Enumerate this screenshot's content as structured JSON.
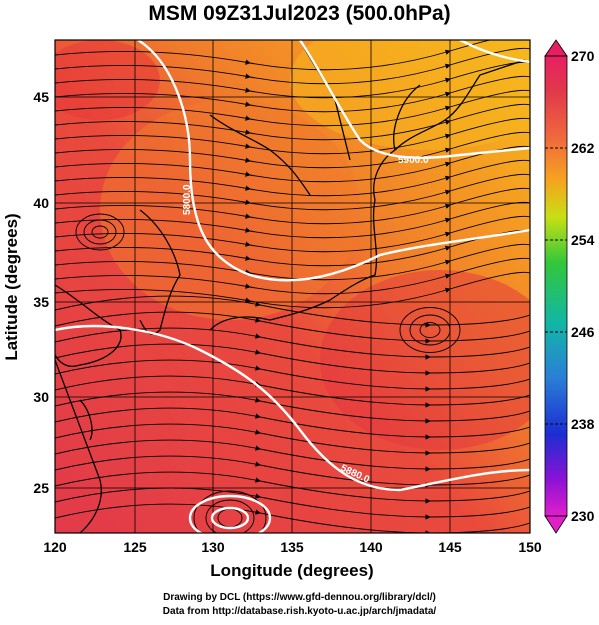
{
  "title": "MSM 09Z31Jul2023 (500.0hPa)",
  "x_axis": {
    "label": "Longitude (degrees)",
    "ticks": [
      "120",
      "125",
      "130",
      "135",
      "140",
      "145",
      "150"
    ]
  },
  "y_axis": {
    "label": "Latitude  (degrees)",
    "ticks": [
      "25",
      "30",
      "35",
      "40",
      "45"
    ]
  },
  "colorbar": {
    "ticks": [
      "270",
      "262",
      "254",
      "246",
      "238",
      "230"
    ],
    "colors": [
      "#e71f62",
      "#e23a4a",
      "#f06a3d",
      "#f6a31f",
      "#c8df14",
      "#32c73a",
      "#12b6a6",
      "#2a7fd6",
      "#1b2ed2",
      "#8a12d6",
      "#e11fc9"
    ]
  },
  "contours": [
    {
      "label": "5800.0"
    },
    {
      "label": "5880.0"
    },
    {
      "label": "5900.0"
    }
  ],
  "credits": {
    "line1": "Drawing by DCL (https://www.gfd-dennou.org/library/dcl/)",
    "line2": "Data from http://database.rish.kyoto-u.ac.jp/arch/jmadata/"
  }
}
